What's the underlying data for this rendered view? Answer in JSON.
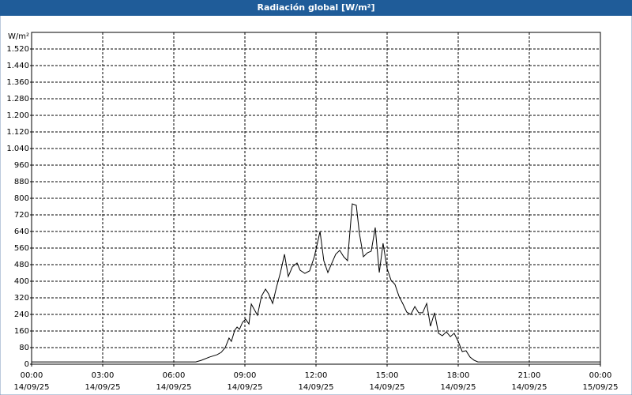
{
  "chart_data": {
    "type": "line",
    "title": "Radiación global [W/m²]",
    "y_label": "W/m²",
    "xlim": [
      0,
      24
    ],
    "xticks": [
      {
        "value": 0,
        "label": "00:00"
      },
      {
        "value": 3,
        "label": "03:00"
      },
      {
        "value": 6,
        "label": "06:00"
      },
      {
        "value": 9,
        "label": "09:00"
      },
      {
        "value": 12,
        "label": "12:00"
      },
      {
        "value": 15,
        "label": "15:00"
      },
      {
        "value": 18,
        "label": "18:00"
      },
      {
        "value": 21,
        "label": "21:00"
      },
      {
        "value": 24,
        "label": "00:00"
      }
    ],
    "xtick_dates": [
      "14/09/25",
      "14/09/25",
      "14/09/25",
      "14/09/25",
      "14/09/25",
      "14/09/25",
      "14/09/25",
      "14/09/25",
      "15/09/25"
    ],
    "ylim": [
      0,
      1600
    ],
    "yticks": [
      0,
      80,
      160,
      240,
      320,
      400,
      480,
      560,
      640,
      720,
      800,
      880,
      960,
      {
        "value": 1040,
        "label": "1.040"
      },
      {
        "value": 1120,
        "label": "1.120"
      },
      {
        "value": 1200,
        "label": "1.200"
      },
      {
        "value": 1280,
        "label": "1.280"
      },
      {
        "value": 1360,
        "label": "1.360"
      },
      {
        "value": 1440,
        "label": "1.440"
      },
      {
        "value": 1520,
        "label": "1.520"
      }
    ],
    "grid": true,
    "color": "#000000",
    "x": [
      0,
      6.93,
      7.17,
      7.5,
      7.83,
      8,
      8.17,
      8.33,
      8.43,
      8.57,
      8.67,
      8.77,
      8.9,
      9.03,
      9.17,
      9.27,
      9.4,
      9.53,
      9.7,
      9.87,
      10,
      10.17,
      10.33,
      10.5,
      10.67,
      10.83,
      11,
      11.2,
      11.33,
      11.53,
      11.73,
      11.93,
      12.17,
      12.33,
      12.5,
      12.67,
      12.83,
      13,
      13.17,
      13.33,
      13.53,
      13.7,
      13.83,
      14,
      14.17,
      14.33,
      14.5,
      14.67,
      14.83,
      15,
      15.17,
      15.33,
      15.5,
      15.67,
      15.83,
      16,
      16.17,
      16.33,
      16.5,
      16.67,
      16.83,
      17,
      17.17,
      17.33,
      17.5,
      17.67,
      17.83,
      18,
      18.17,
      18.33,
      18.5,
      18.67,
      18.83,
      24
    ],
    "values": [
      11,
      11,
      19,
      34,
      46,
      57,
      80,
      126,
      110,
      164,
      179,
      168,
      202,
      217,
      194,
      290,
      263,
      236,
      328,
      362,
      339,
      293,
      370,
      442,
      530,
      423,
      469,
      488,
      453,
      438,
      450,
      518,
      640,
      499,
      442,
      488,
      530,
      549,
      518,
      499,
      773,
      766,
      632,
      518,
      537,
      545,
      659,
      442,
      583,
      461,
      404,
      385,
      328,
      290,
      251,
      240,
      278,
      248,
      248,
      293,
      183,
      248,
      149,
      137,
      156,
      133,
      149,
      110,
      61,
      65,
      34,
      19,
      11,
      11
    ]
  }
}
